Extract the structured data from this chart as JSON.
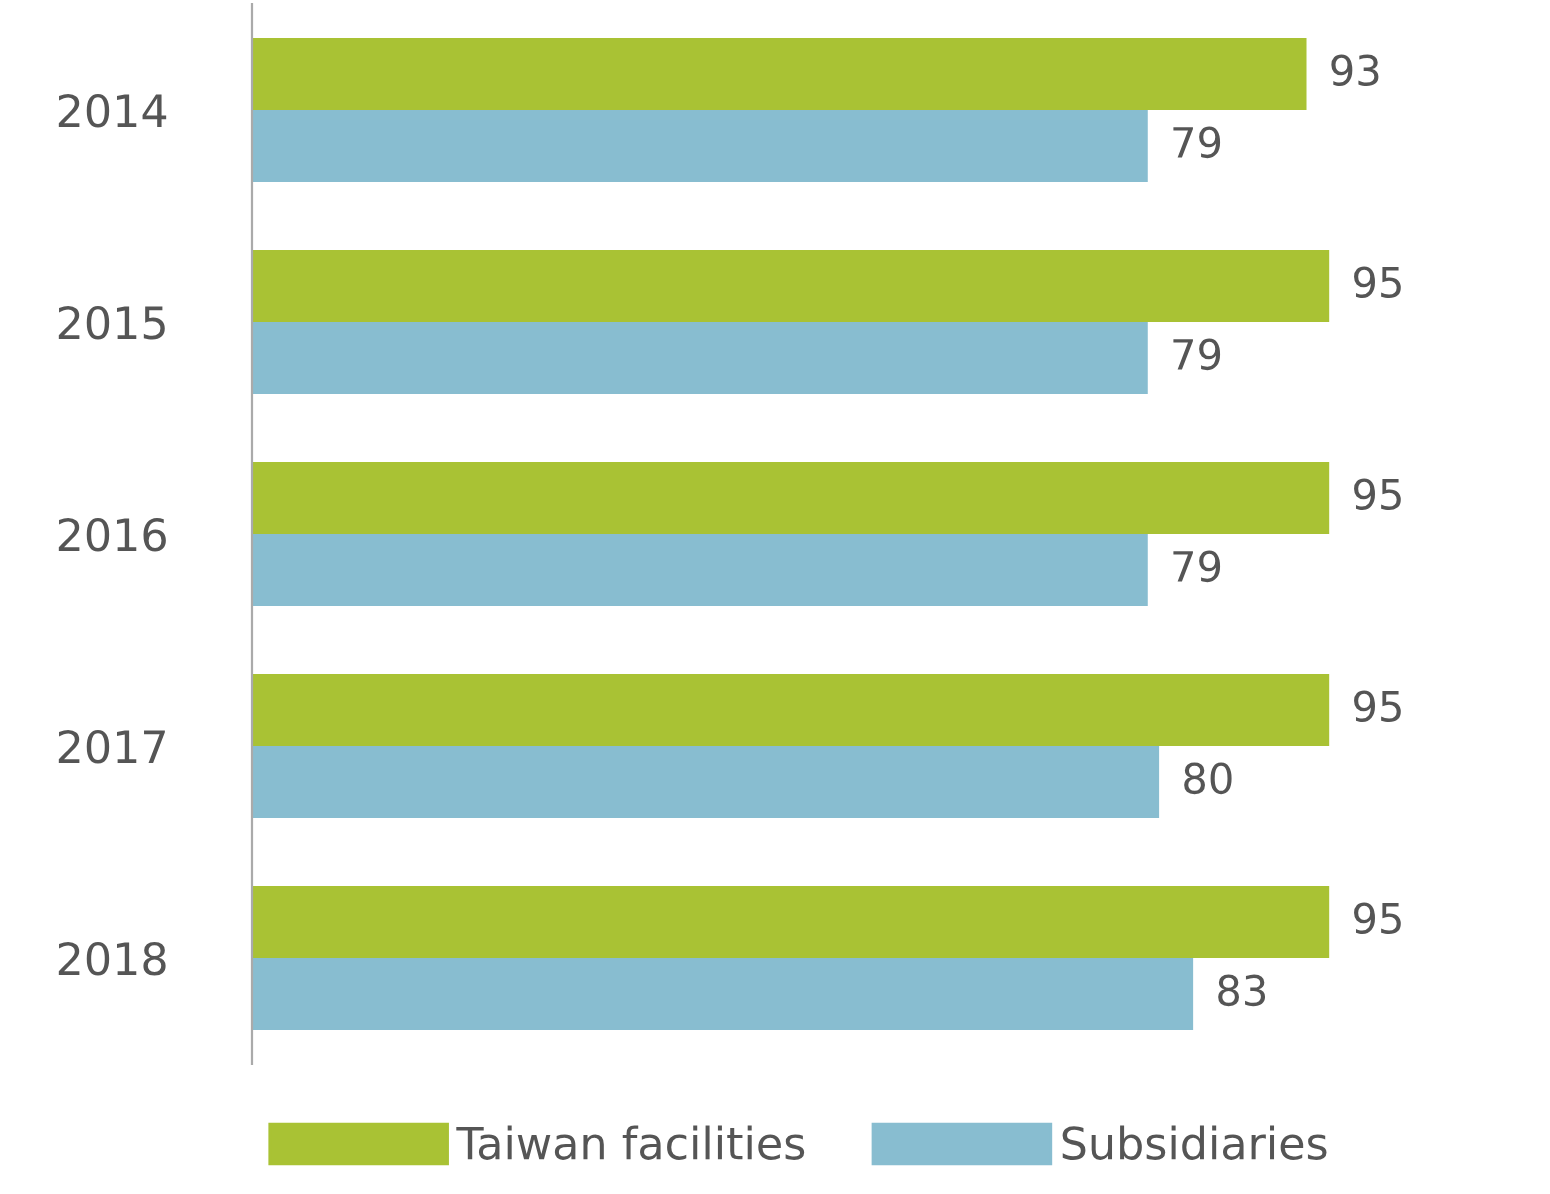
{
  "chart_data": {
    "type": "bar",
    "orientation": "horizontal",
    "categories": [
      "2014",
      "2015",
      "2016",
      "2017",
      "2018"
    ],
    "series": [
      {
        "name": "Taiwan facilities",
        "color": "#a9c234",
        "values": [
          93,
          95,
          95,
          95,
          95
        ]
      },
      {
        "name": "Subsidiaries",
        "color": "#88bdd0",
        "values": [
          79,
          79,
          79,
          80,
          83
        ]
      }
    ],
    "data_labels": true,
    "legend": "bottom",
    "grid": false
  }
}
